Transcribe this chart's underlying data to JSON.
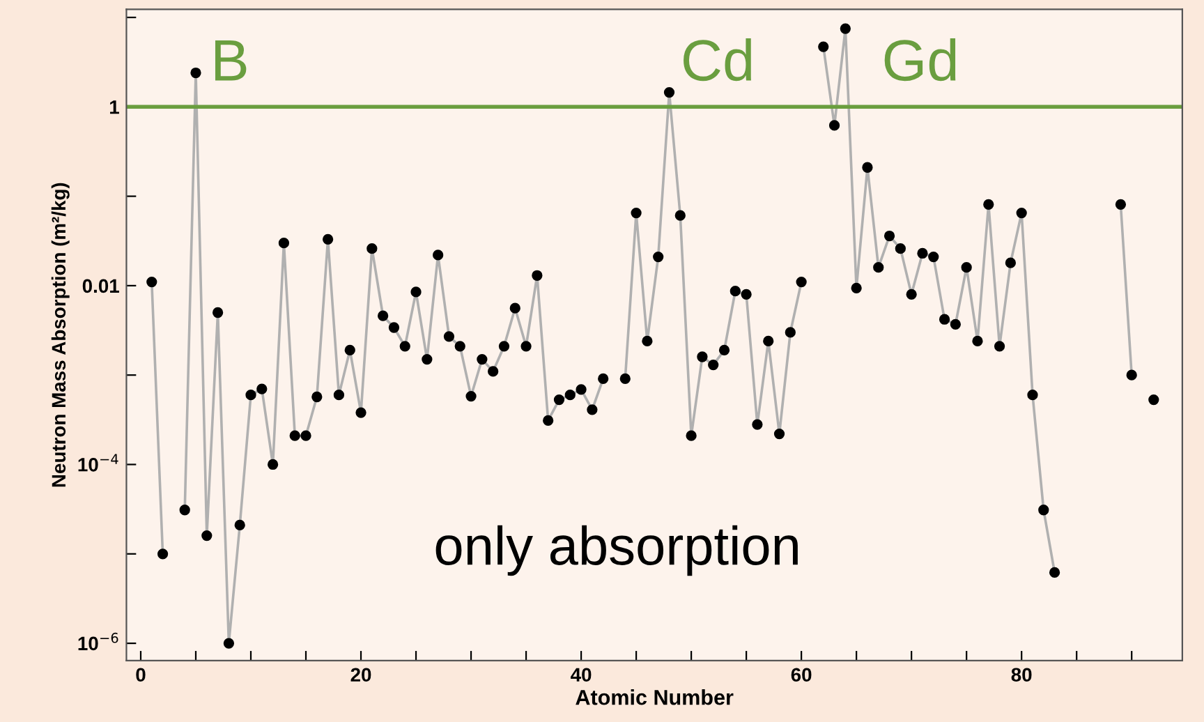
{
  "chart_data": {
    "type": "line",
    "xlabel": "Atomic Number",
    "ylabel": "Neutron Mass Absorption (m²/kg)",
    "x": [
      1,
      2,
      3,
      4,
      5,
      6,
      7,
      8,
      9,
      10,
      11,
      12,
      13,
      14,
      15,
      16,
      17,
      18,
      19,
      20,
      21,
      22,
      23,
      24,
      25,
      26,
      27,
      28,
      29,
      30,
      31,
      32,
      33,
      34,
      35,
      36,
      37,
      38,
      39,
      40,
      41,
      42,
      43,
      44,
      45,
      46,
      47,
      48,
      49,
      50,
      51,
      52,
      53,
      54,
      55,
      56,
      57,
      58,
      59,
      60,
      61,
      62,
      63,
      64,
      65,
      66,
      67,
      68,
      69,
      70,
      71,
      72,
      73,
      74,
      75,
      76,
      77,
      78,
      79,
      80,
      81,
      82,
      83,
      84,
      85,
      86,
      87,
      88,
      89,
      90,
      91,
      92
    ],
    "series": [
      {
        "color": "#000000",
        "values": [
          0.011,
          1e-05,
          null,
          3.1e-05,
          2.4,
          1.6e-05,
          0.005,
          1e-06,
          2.1e-05,
          0.0006,
          0.0007,
          0.0001,
          0.03,
          0.00021,
          0.00021,
          0.00057,
          0.033,
          0.0006,
          0.0019,
          0.00038,
          0.026,
          0.0046,
          0.0034,
          0.0021,
          0.0085,
          0.0015,
          0.022,
          0.0027,
          0.0021,
          0.00058,
          0.0015,
          0.0011,
          0.0021,
          0.0056,
          0.0021,
          0.013,
          0.00031,
          0.00053,
          0.0006,
          0.00069,
          0.00041,
          0.00091,
          null,
          0.00091,
          0.065,
          0.0024,
          0.021,
          1.45,
          0.061,
          0.00021,
          0.0016,
          0.0013,
          0.0019,
          0.0087,
          0.008,
          0.00028,
          0.0024,
          0.00022,
          0.003,
          0.011,
          null,
          4.7,
          0.62,
          7.5,
          0.0094,
          0.21,
          0.016,
          0.036,
          0.026,
          0.008,
          0.023,
          0.021,
          0.0042,
          0.0037,
          0.016,
          0.0024,
          0.081,
          0.0021,
          0.018,
          0.065,
          0.0006,
          3.1e-05,
          6.2e-06,
          null,
          null,
          null,
          null,
          null,
          0.081,
          0.001,
          null,
          0.00053
        ]
      }
    ],
    "marker": "circle",
    "line_style": "solid",
    "log": "y",
    "grid": false,
    "legend": false,
    "xlim": [
      -1.3,
      94.6
    ],
    "ylim": [
      6.4e-07,
      12.3
    ],
    "xticks": [
      0,
      {
        "value": 5,
        "label": null
      },
      {
        "value": 10,
        "label": null
      },
      {
        "value": 15,
        "label": null
      },
      20,
      {
        "value": 25,
        "label": null
      },
      {
        "value": 30,
        "label": null
      },
      {
        "value": 35,
        "label": null
      },
      40,
      {
        "value": 45,
        "label": null
      },
      {
        "value": 50,
        "label": null
      },
      {
        "value": 55,
        "label": null
      },
      60,
      {
        "value": 65,
        "label": null
      },
      {
        "value": 70,
        "label": null
      },
      {
        "value": 75,
        "label": null
      },
      80,
      {
        "value": 85,
        "label": null
      },
      {
        "value": 90,
        "label": null
      }
    ],
    "yticks": [
      {
        "value": 1e-06,
        "label": "10$^{−6}$"
      },
      {
        "value": 1e-05,
        "label": null
      },
      {
        "value": 0.0001,
        "label": "10$^{−4}$"
      },
      {
        "value": 0.001,
        "label": null
      },
      0.01,
      {
        "value": 0.1,
        "label": null
      },
      1,
      {
        "value": 10,
        "label": null
      }
    ],
    "ref_lines": [
      {
        "axis": "y",
        "value": 1,
        "color": "#6a9e3f",
        "line_style": "solid"
      }
    ],
    "annotations": [
      "B",
      "Cd",
      "Gd",
      "only absorption"
    ]
  }
}
